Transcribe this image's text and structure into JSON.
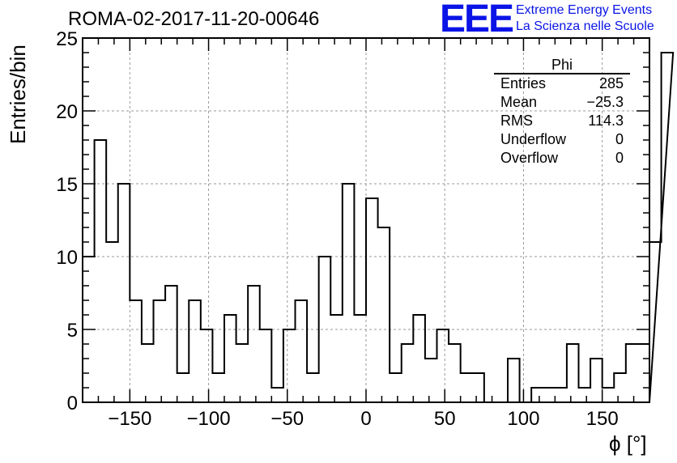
{
  "header": {
    "title": "ROMA-02-2017-11-20-00646",
    "logo_text": "EEE",
    "logo_line1": "Extreme Energy Events",
    "logo_line2": "La Scienza nelle Scuole"
  },
  "stats": {
    "title": "Phi",
    "rows": [
      {
        "label": "Entries",
        "value": "285"
      },
      {
        "label": "Mean",
        "value": "−25.3"
      },
      {
        "label": "RMS",
        "value": "114.3"
      },
      {
        "label": "Underflow",
        "value": "0"
      },
      {
        "label": "Overflow",
        "value": "0"
      }
    ]
  },
  "colors": {
    "logo": "#0a14e6",
    "histogram_line": "#000000",
    "grid": "#999999"
  },
  "chart_data": {
    "type": "bar",
    "histogram": true,
    "title": "ROMA-02-2017-11-20-00646",
    "xlabel": "ϕ [°]",
    "ylabel": "Entries/bin",
    "xlim": [
      -180,
      180
    ],
    "ylim": [
      0,
      25
    ],
    "bin_width": 7.5,
    "x_ticks": [
      -150,
      -100,
      -50,
      0,
      50,
      100,
      150
    ],
    "x_tick_labels": [
      "−150",
      "−100",
      "−50",
      "0",
      "50",
      "100",
      "150"
    ],
    "y_ticks": [
      0,
      5,
      10,
      15,
      20,
      25
    ],
    "y_tick_labels": [
      "0",
      "5",
      "10",
      "15",
      "20",
      "25"
    ],
    "grid": true,
    "values": [
      10,
      18,
      11,
      15,
      7,
      4,
      7,
      8,
      2,
      7,
      5,
      2,
      6,
      4,
      8,
      5,
      1,
      5,
      7,
      2,
      10,
      6,
      15,
      6,
      14,
      12,
      2,
      4,
      6,
      3,
      5,
      4,
      2,
      2,
      0,
      0,
      3,
      0,
      1,
      1,
      1,
      4,
      1,
      3,
      1,
      2,
      4,
      4,
      11,
      24
    ]
  }
}
